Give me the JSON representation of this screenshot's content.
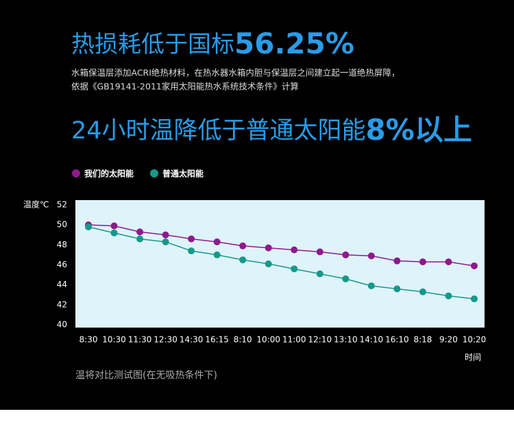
{
  "header": {
    "headline_1": {
      "text": "热损耗低于国标",
      "highlight": "56.25%"
    },
    "description": [
      "水箱保温层添加ACRI绝热材料，在热水器水箱内胆与保温层之间建立起一道绝热屏障，",
      "依据《GB19141-2011家用太阳能热水系统技术条件》计算"
    ],
    "headline_2": {
      "text": "24小时温降低于普通太阳能",
      "highlight": "8%以上"
    }
  },
  "chart_data": {
    "type": "line",
    "y_label": "温度℃",
    "x_label": "时间",
    "caption": "温将对比测试图(在无吸热条件下)",
    "categories": [
      "8:30",
      "10:30",
      "11:30",
      "12:30",
      "14:30",
      "16:15",
      "8:10",
      "10:00",
      "11:00",
      "12:10",
      "13:10",
      "14:10",
      "16:10",
      "8:18",
      "9:20",
      "10:20"
    ],
    "series": [
      {
        "name": "我们的太阳能",
        "color": "#8e1a8c",
        "values": [
          50.0,
          49.9,
          49.3,
          49.0,
          48.6,
          48.3,
          47.9,
          47.7,
          47.5,
          47.3,
          47.0,
          46.9,
          46.4,
          46.3,
          46.3,
          45.9
        ]
      },
      {
        "name": "普通太阳能",
        "color": "#17988a",
        "values": [
          49.8,
          49.2,
          48.6,
          48.3,
          47.4,
          47.0,
          46.5,
          46.1,
          45.6,
          45.1,
          44.6,
          43.9,
          43.6,
          43.3,
          42.9,
          42.6
        ]
      }
    ],
    "ylim": [
      40,
      52
    ],
    "yticks": [
      40,
      42,
      44,
      46,
      48,
      50,
      52
    ],
    "grid": false,
    "legend": "top-left"
  }
}
